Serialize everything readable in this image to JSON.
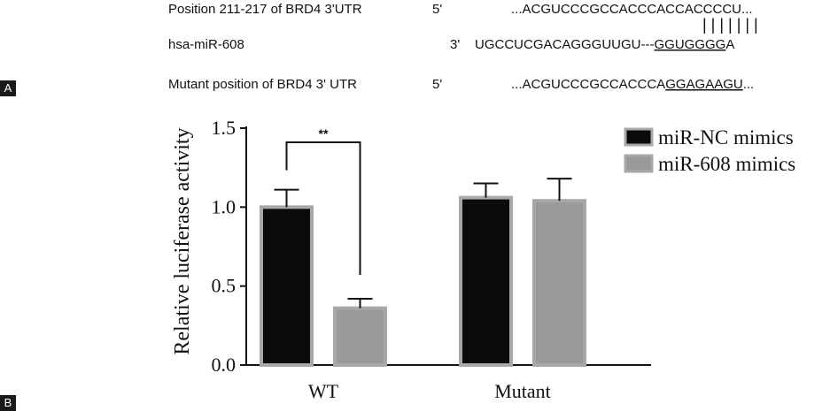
{
  "panels": {
    "a": "A",
    "b": "B"
  },
  "sequence_alignment": {
    "row1": {
      "label": "Position 211-217 of BRD4 3'UTR",
      "end": "5'",
      "seq_prefix": "...ACGUCCCGCCACCCAC",
      "seq_site": "CACCCCU",
      "seq_suffix": "..."
    },
    "pairs": "| | | | | | |",
    "row2": {
      "label": "hsa-miR-608",
      "end": "3'",
      "seq_prefix": "UGCCUCGACAGGGUUGU---",
      "seq_site": "GGUGGGG",
      "seq_suffix": "A"
    },
    "row3": {
      "label": "Mutant position of BRD4 3' UTR",
      "end": "5'",
      "seq_prefix": "...ACGUCCCGCCACCCA",
      "seq_site": "GGAGAAGU",
      "seq_suffix": "..."
    }
  },
  "colors": {
    "nc": "#0b0b0b",
    "mir608": "#9a9a9a",
    "bar_outline": "#a8a8a8",
    "axis": "#111111"
  },
  "chart_data": {
    "type": "bar",
    "title": "",
    "xlabel": "",
    "ylabel": "Relative luciferase activity",
    "categories": [
      "WT",
      "Mutant"
    ],
    "ylim": [
      0,
      1.5
    ],
    "yticks": [
      "0.0",
      "0.5",
      "1.0",
      "1.5"
    ],
    "series": [
      {
        "name": "miR-NC mimics",
        "values": [
          1.0,
          1.06
        ],
        "errors": [
          0.11,
          0.09
        ]
      },
      {
        "name": "miR-608 mimics",
        "values": [
          0.36,
          1.04
        ],
        "errors": [
          0.06,
          0.14
        ]
      }
    ],
    "annotations": [
      {
        "text": "**",
        "category": "WT"
      }
    ],
    "legend_position": "top-right",
    "grid": false
  }
}
